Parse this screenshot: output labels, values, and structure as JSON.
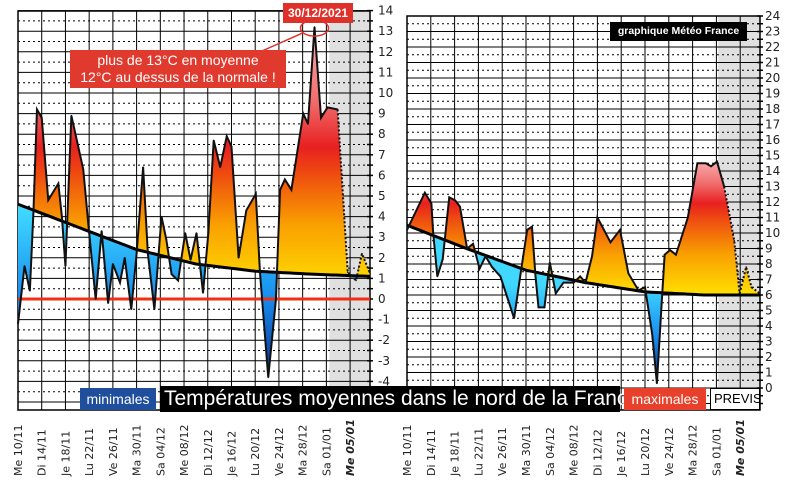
{
  "annotations": {
    "date": "30/12/2021",
    "note_line1": "plus de 13°C en moyenne",
    "note_line2": "12°C au dessus de la normale !",
    "credit": "graphique Météo France"
  },
  "legend": {
    "minimales": "minimales",
    "title": "Températures moyennes dans le nord de la France",
    "maximales": "maximales",
    "prevision": "PREVIS"
  },
  "colors": {
    "normal_line": "#000000",
    "zero_line": "#f03010",
    "forecast_bg": "#e0e0e0",
    "annotation": "#e0302a"
  },
  "chart_data": [
    {
      "type": "area",
      "name": "minimales",
      "ylabel": "°C",
      "ylim": [
        -4,
        14
      ],
      "yticks": [
        "14",
        "13",
        "12",
        "11",
        "10",
        "9",
        "8",
        "7",
        "6",
        "5",
        "4",
        "3",
        "2",
        "1",
        "0",
        "-1",
        "-2",
        "-3",
        "-4"
      ],
      "ytick_values": [
        14,
        13,
        12,
        11,
        10,
        9,
        8,
        7,
        6,
        5,
        4,
        3,
        2,
        1,
        0,
        -1,
        -2,
        -3,
        -4
      ],
      "x_unit": "days since 10/11/2021",
      "x_labels": [
        "Me 10/11",
        "Di 14/11",
        "Je 18/11",
        "Lu 22/11",
        "Ve 26/11",
        "Ma 30/11",
        "Sa 04/12",
        "Me 08/12",
        "Di 12/12",
        "Je 16/12",
        "Lu 20/12",
        "Ve 24/12",
        "Ma 28/12",
        "Sa 01/01",
        "Me 05/01"
      ],
      "x_label_days": [
        0,
        4,
        8,
        12,
        16,
        20,
        24,
        28,
        32,
        36,
        40,
        44,
        48,
        52,
        56
      ],
      "forecast_from_day": 52.5,
      "zero_line": true,
      "observed": [
        [
          0,
          -1.2
        ],
        [
          1.1,
          1.6
        ],
        [
          2,
          0.4
        ],
        [
          2.6,
          4.2
        ],
        [
          3.2,
          9.2
        ],
        [
          4,
          8.8
        ],
        [
          5.1,
          4.8
        ],
        [
          6.8,
          5.6
        ],
        [
          7.4,
          4.0
        ],
        [
          8,
          1.6
        ],
        [
          9,
          8.9
        ],
        [
          11,
          6.3
        ],
        [
          11.9,
          3.5
        ],
        [
          13.1,
          0
        ],
        [
          14.1,
          3.3
        ],
        [
          15.2,
          -0.2
        ],
        [
          16,
          1.7
        ],
        [
          17.2,
          0.8
        ],
        [
          18,
          2.0
        ],
        [
          19.1,
          -0.5
        ],
        [
          20,
          2.2
        ],
        [
          21.1,
          6.4
        ],
        [
          21.9,
          2.2
        ],
        [
          23,
          -0.5
        ],
        [
          24.2,
          4.0
        ],
        [
          25,
          2.9
        ],
        [
          25.9,
          1.2
        ],
        [
          27,
          0.9
        ],
        [
          28.2,
          3.2
        ],
        [
          29.1,
          1.9
        ],
        [
          30.1,
          3.2
        ],
        [
          31.2,
          0.3
        ],
        [
          32.1,
          3.2
        ],
        [
          33,
          7.7
        ],
        [
          34.1,
          6.4
        ],
        [
          35.2,
          7.9
        ],
        [
          36,
          7.4
        ],
        [
          37.2,
          2.0
        ],
        [
          38.5,
          4.3
        ],
        [
          40.1,
          5.1
        ],
        [
          40.8,
          1.3
        ],
        [
          42.2,
          -3.8
        ],
        [
          43.5,
          0
        ],
        [
          44.2,
          5.3
        ],
        [
          45,
          5.8
        ],
        [
          46.1,
          5.3
        ],
        [
          48.1,
          9.0
        ],
        [
          48.9,
          8.5
        ],
        [
          50,
          13.2
        ],
        [
          51.1,
          8.8
        ],
        [
          52.2,
          9.3
        ],
        [
          53.9,
          9.2
        ],
        [
          55.6,
          1.3
        ],
        [
          57,
          0.9
        ],
        [
          58,
          2.2
        ],
        [
          59.3,
          1.3
        ]
      ],
      "normal": [
        [
          0,
          4.6
        ],
        [
          10,
          3.5
        ],
        [
          20,
          2.4
        ],
        [
          30,
          1.7
        ],
        [
          40,
          1.35
        ],
        [
          50,
          1.2
        ],
        [
          59.3,
          1.1
        ]
      ]
    },
    {
      "type": "area",
      "name": "maximales",
      "ylabel": "°C",
      "ylim": [
        0,
        24
      ],
      "yticks": [
        "24",
        "23",
        "22",
        "21",
        "20",
        "19",
        "18",
        "17",
        "16",
        "15",
        "14",
        "13",
        "12",
        "11",
        "10",
        "9",
        "8",
        "7",
        "6",
        "5",
        "4",
        "3",
        "2",
        "1",
        "0"
      ],
      "ytick_values": [
        24,
        23,
        22,
        21,
        20,
        19,
        18,
        17,
        16,
        15,
        14,
        13,
        12,
        11,
        10,
        9,
        8,
        7,
        6,
        5,
        4,
        3,
        2,
        1,
        0
      ],
      "x_unit": "days since 10/11/2021",
      "x_labels": [
        "Me 10/11",
        "Di 14/11",
        "Je 18/11",
        "Lu 22/11",
        "Ve 26/11",
        "Ma 30/11",
        "Sa 04/12",
        "Me 08/12",
        "Di 12/12",
        "Je 16/12",
        "Lu 20/12",
        "Ve 24/12",
        "Ma 28/12",
        "Sa 01/01",
        "Me 05/01"
      ],
      "x_label_days": [
        0,
        4,
        8,
        12,
        16,
        20,
        24,
        28,
        32,
        36,
        40,
        44,
        48,
        52,
        56
      ],
      "forecast_from_day": 52.3,
      "zero_line": false,
      "observed": [
        [
          0,
          10.2
        ],
        [
          1,
          11.0
        ],
        [
          3,
          12.6
        ],
        [
          4.1,
          11.9
        ],
        [
          4.4,
          10.0
        ],
        [
          5.1,
          7.2
        ],
        [
          6,
          8.3
        ],
        [
          7.1,
          12.3
        ],
        [
          8.1,
          12.1
        ],
        [
          8.9,
          11.7
        ],
        [
          10.1,
          9.0
        ],
        [
          11.1,
          9.3
        ],
        [
          12.2,
          7.7
        ],
        [
          13.2,
          8.5
        ],
        [
          14.3,
          7.8
        ],
        [
          15.7,
          7.2
        ],
        [
          18,
          4.5
        ],
        [
          19.1,
          7.4
        ],
        [
          20.2,
          10.2
        ],
        [
          21,
          10.4
        ],
        [
          21.6,
          7.2
        ],
        [
          22.1,
          5.2
        ],
        [
          23.1,
          5.2
        ],
        [
          24,
          8.1
        ],
        [
          25,
          6.1
        ],
        [
          26.3,
          6.8
        ],
        [
          28,
          6.8
        ],
        [
          29.1,
          7.2
        ],
        [
          30,
          6.8
        ],
        [
          31.1,
          8.5
        ],
        [
          32,
          11.0
        ],
        [
          34.2,
          9.4
        ],
        [
          35.8,
          10.2
        ],
        [
          37.2,
          7.4
        ],
        [
          38.9,
          6.3
        ],
        [
          40,
          6.5
        ],
        [
          41.2,
          3.5
        ],
        [
          42,
          0.3
        ],
        [
          42.9,
          6.1
        ],
        [
          43.3,
          8.6
        ],
        [
          44.2,
          8.9
        ],
        [
          45.2,
          8.6
        ],
        [
          47.2,
          11.0
        ],
        [
          48.8,
          14.5
        ],
        [
          50.2,
          14.5
        ],
        [
          51.1,
          14.3
        ],
        [
          52.1,
          14.6
        ],
        [
          53.3,
          13.0
        ],
        [
          55,
          9.5
        ],
        [
          55.9,
          6.1
        ],
        [
          57,
          7.8
        ],
        [
          57.9,
          6.5
        ],
        [
          59.3,
          6.1
        ]
      ],
      "normal": [
        [
          0,
          10.5
        ],
        [
          10,
          9.0
        ],
        [
          20,
          7.6
        ],
        [
          30,
          6.8
        ],
        [
          40,
          6.2
        ],
        [
          50,
          6.0
        ],
        [
          59.3,
          6.0
        ]
      ]
    }
  ]
}
